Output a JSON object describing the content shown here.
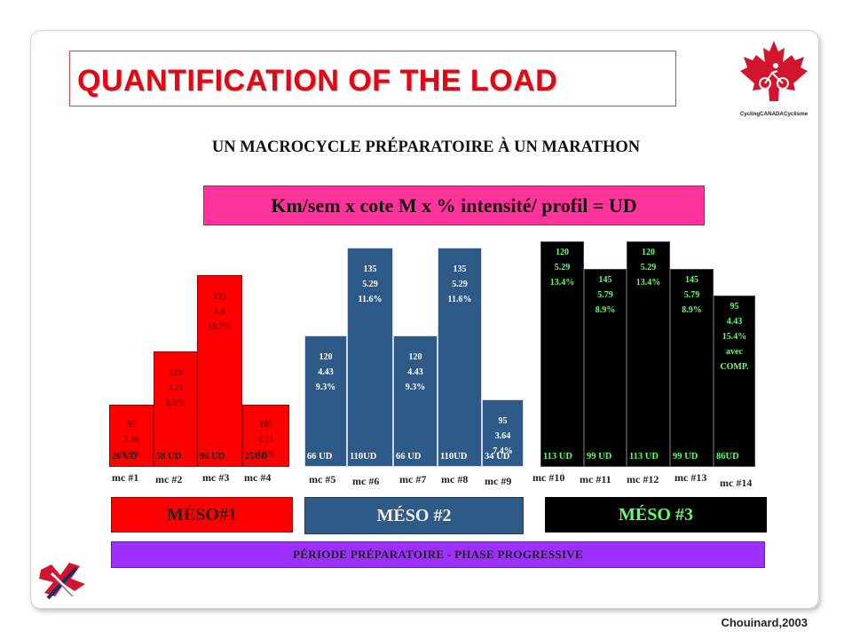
{
  "title": "QUANTIFICATION OF THE LOAD",
  "subtitle": "UN MACROCYCLE PRÉPARATOIRE À UN MARATHON",
  "formula": "Km/sem x cote M x % intensité/ profil = UD",
  "logo_text": "CyclingCANADACyclisme",
  "credit": "Chouinard,2003",
  "periode": "PÉRIODE PRÉPARATOIRE - PHASE PROGRESSIVE",
  "colors": {
    "meso1": "#ff0000",
    "meso2": "#2e5a87",
    "meso3": "#000000",
    "formula": "#ff3399",
    "periode": "#9b30ff",
    "meso3_text": "#66ff66"
  },
  "chart_data": {
    "type": "bar",
    "unit": "UD",
    "ylim": [
      0,
      113
    ],
    "groups": [
      {
        "label": "MÉSO#1",
        "bars": [
          0,
          1,
          2,
          3
        ]
      },
      {
        "label": "MÉSO #2",
        "bars": [
          4,
          5,
          6,
          7,
          8
        ]
      },
      {
        "label": "MÉSO #3",
        "bars": [
          9,
          10,
          11,
          12,
          13
        ]
      }
    ],
    "bars": [
      {
        "label": "mc #1",
        "lines": [
          "95",
          "3.36",
          "6.3%"
        ],
        "ud": 26,
        "ud_text": "26 UD",
        "meso": 1
      },
      {
        "label": "mc #2",
        "lines": [
          "120",
          "4.21",
          "8.8%"
        ],
        "ud": 58,
        "ud_text": "58 UD",
        "meso": 1
      },
      {
        "label": "mc #3",
        "lines": [
          "135",
          "5.0",
          "10.7%"
        ],
        "ud": 96,
        "ud_text": "96 UD",
        "meso": 1
      },
      {
        "label": "mc #4",
        "lines": [
          "105",
          "4.21",
          "4.3%"
        ],
        "ud": 25,
        "ud_text": "25UD",
        "meso": 1
      },
      {
        "label": "mc #5",
        "lines": [
          "120",
          "4.43",
          "9.3%"
        ],
        "ud": 66,
        "ud_text": "66 UD",
        "meso": 2
      },
      {
        "label": "mc #6",
        "lines": [
          "135",
          "5.29",
          "11.6%"
        ],
        "ud": 110,
        "ud_text": "110UD",
        "meso": 2
      },
      {
        "label": "mc #7",
        "lines": [
          "120",
          "4.43",
          "9.3%"
        ],
        "ud": 66,
        "ud_text": "66 UD",
        "meso": 2
      },
      {
        "label": "mc #8",
        "lines": [
          "135",
          "5.29",
          "11.6%"
        ],
        "ud": 110,
        "ud_text": "110UD",
        "meso": 2
      },
      {
        "label": "mc #9",
        "lines": [
          "95",
          "3.64",
          "7.4%"
        ],
        "ud": 34,
        "ud_text": "34 UD",
        "meso": 2
      },
      {
        "label": "mc #10",
        "lines": [
          "120",
          "5.29",
          "13.4%"
        ],
        "ud": 113,
        "ud_text": "113 UD",
        "meso": 3
      },
      {
        "label": "mc #11",
        "lines": [
          "145",
          "5.79",
          "8.9%"
        ],
        "ud": 99,
        "ud_text": "99 UD",
        "meso": 3
      },
      {
        "label": "mc #12",
        "lines": [
          "120",
          "5.29",
          "13.4%"
        ],
        "ud": 113,
        "ud_text": "113 UD",
        "meso": 3
      },
      {
        "label": "mc #13",
        "lines": [
          "145",
          "5.79",
          "8.9%"
        ],
        "ud": 99,
        "ud_text": "99 UD",
        "meso": 3
      },
      {
        "label": "mc #14",
        "lines": [
          "95",
          "4.43",
          "15.4%",
          "avec",
          "COMP."
        ],
        "ud": 86,
        "ud_text": "86UD",
        "meso": 3
      }
    ]
  }
}
